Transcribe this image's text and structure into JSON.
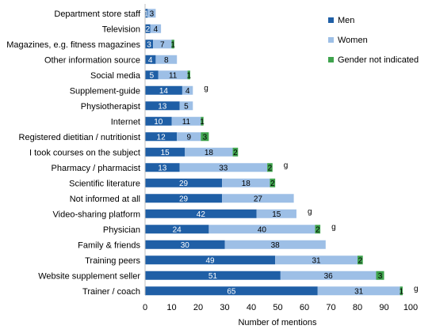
{
  "chart_data": {
    "type": "bar",
    "orientation": "horizontal",
    "stacked": true,
    "categories": [
      "Department store staff",
      "Television",
      "Magazines, e.g. fitness magazines",
      "Other information source",
      "Social media",
      "Supplement-guide",
      "Physiotherapist",
      "Internet",
      "Registered dietitian / nutritionist",
      "I took courses on the subject",
      "Pharmacy / pharmacist",
      "Scientific literature",
      "Not informed at all",
      "Video-sharing platform",
      "Physician",
      "Family & friends",
      "Training peers",
      "Website supplement seller",
      "Trainer / coach"
    ],
    "series": [
      {
        "name": "Men",
        "color": "#1f5fa6",
        "values": [
          1,
          2,
          3,
          4,
          5,
          14,
          13,
          10,
          12,
          15,
          13,
          29,
          29,
          42,
          24,
          30,
          49,
          51,
          65
        ]
      },
      {
        "name": "Women",
        "color": "#9dbfe6",
        "values": [
          3,
          4,
          7,
          8,
          11,
          4,
          5,
          11,
          9,
          18,
          33,
          18,
          27,
          15,
          40,
          38,
          31,
          36,
          31
        ]
      },
      {
        "name": "Gender not indicated",
        "color": "#3fa34d",
        "values": [
          0,
          0,
          1,
          0,
          1,
          0,
          0,
          1,
          3,
          2,
          2,
          2,
          0,
          0,
          2,
          0,
          2,
          3,
          1
        ]
      }
    ],
    "annotations": [
      {
        "category": "Supplement-guide",
        "text": "g"
      },
      {
        "category": "Pharmacy / pharmacist",
        "text": "g"
      },
      {
        "category": "Video-sharing platform",
        "text": "g"
      },
      {
        "category": "Physician",
        "text": "g"
      },
      {
        "category": "Trainer / coach",
        "text": "g"
      }
    ],
    "xlabel": "Number of mentions",
    "ylabel": "",
    "xlim": [
      0,
      100
    ],
    "xticks": [
      0,
      10,
      20,
      30,
      40,
      50,
      60,
      70,
      80,
      90,
      100
    ],
    "grid": false,
    "legend_position": "top-right"
  }
}
